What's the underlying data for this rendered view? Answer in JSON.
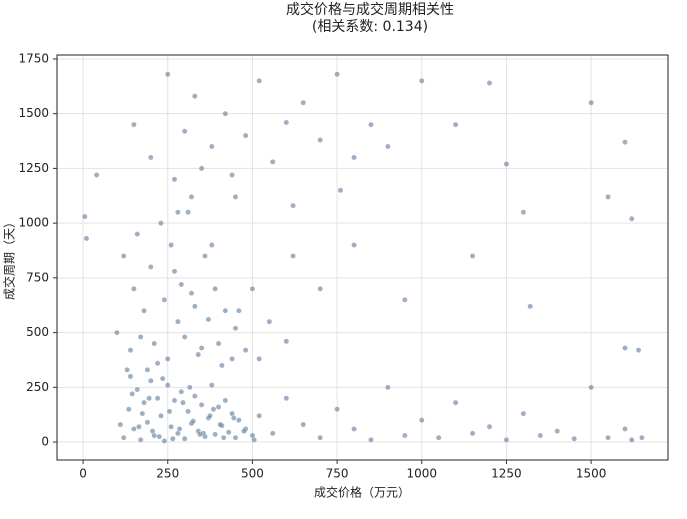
{
  "chart_data": {
    "type": "scatter",
    "title": "成交价格与成交周期相关性",
    "subtitle": "(相关系数: 0.134)",
    "x_label": "成交价格（万元）",
    "y_label": "成交周期（天）",
    "color": "#5b7a99",
    "grid": true,
    "xlim": [
      -77,
      1727
    ],
    "ylim": [
      -82,
      1768
    ],
    "xticks": [
      0,
      250,
      500,
      750,
      1000,
      1250,
      1500
    ],
    "yticks": [
      0,
      250,
      500,
      750,
      1000,
      1250,
      1500,
      1750
    ],
    "x": [
      120,
      135,
      150,
      160,
      170,
      180,
      190,
      200,
      210,
      220,
      230,
      240,
      250,
      260,
      270,
      280,
      290,
      300,
      310,
      320,
      330,
      340,
      350,
      360,
      370,
      380,
      390,
      400,
      410,
      420,
      430,
      440,
      450,
      460,
      480,
      500,
      110,
      145,
      175,
      205,
      235,
      265,
      295,
      325,
      355,
      385,
      415,
      445,
      475,
      505,
      140,
      165,
      195,
      225,
      255,
      285,
      315,
      345,
      375,
      405,
      100,
      120,
      140,
      150,
      160,
      180,
      190,
      200,
      210,
      230,
      240,
      250,
      260,
      280,
      290,
      300,
      310,
      330,
      340,
      360,
      370,
      390,
      400,
      420,
      440,
      450,
      130,
      170,
      220,
      270,
      320,
      350,
      380,
      410,
      460,
      480,
      500,
      520,
      550,
      600,
      150,
      200,
      250,
      270,
      300,
      330,
      350,
      380,
      420,
      450,
      480,
      520,
      560,
      600,
      650,
      700,
      750,
      800,
      850,
      900,
      280,
      320,
      440,
      620,
      760,
      520,
      560,
      600,
      650,
      700,
      750,
      800,
      850,
      900,
      950,
      1000,
      1050,
      1100,
      1150,
      1200,
      1250,
      1300,
      1350,
      1400,
      1450,
      1500,
      1550,
      1600,
      1620,
      1650,
      5,
      10,
      40,
      620,
      700,
      800,
      950,
      1000,
      1100,
      1150,
      1200,
      1250,
      1300,
      1320,
      1500,
      1550,
      1600,
      1600,
      1620,
      1640
    ],
    "values": [
      20,
      150,
      60,
      240,
      10,
      180,
      90,
      280,
      30,
      200,
      120,
      5,
      260,
      70,
      190,
      40,
      230,
      15,
      140,
      85,
      210,
      50,
      170,
      25,
      110,
      260,
      35,
      160,
      75,
      190,
      45,
      130,
      20,
      100,
      60,
      30,
      80,
      220,
      130,
      50,
      290,
      15,
      180,
      95,
      40,
      150,
      20,
      110,
      50,
      10,
      300,
      70,
      200,
      25,
      140,
      60,
      250,
      35,
      120,
      80,
      500,
      850,
      420,
      700,
      950,
      600,
      330,
      800,
      450,
      1000,
      650,
      380,
      900,
      550,
      720,
      480,
      1050,
      620,
      400,
      850,
      560,
      700,
      450,
      600,
      380,
      520,
      330,
      480,
      360,
      780,
      680,
      430,
      900,
      350,
      600,
      420,
      700,
      380,
      550,
      460,
      1450,
      1300,
      1680,
      1200,
      1420,
      1580,
      1250,
      1350,
      1500,
      1120,
      1400,
      1650,
      1280,
      1460,
      1550,
      1380,
      1680,
      1300,
      1450,
      1350,
      1050,
      1120,
      1220,
      1080,
      1150,
      120,
      40,
      200,
      80,
      20,
      150,
      60,
      10,
      250,
      30,
      100,
      20,
      180,
      40,
      70,
      10,
      130,
      30,
      50,
      15,
      250,
      20,
      60,
      10,
      20,
      1030,
      930,
      1220,
      850,
      700,
      900,
      650,
      1650,
      1450,
      850,
      1640,
      1270,
      1050,
      620,
      1550,
      1120,
      1370,
      430,
      1020,
      420
    ]
  }
}
